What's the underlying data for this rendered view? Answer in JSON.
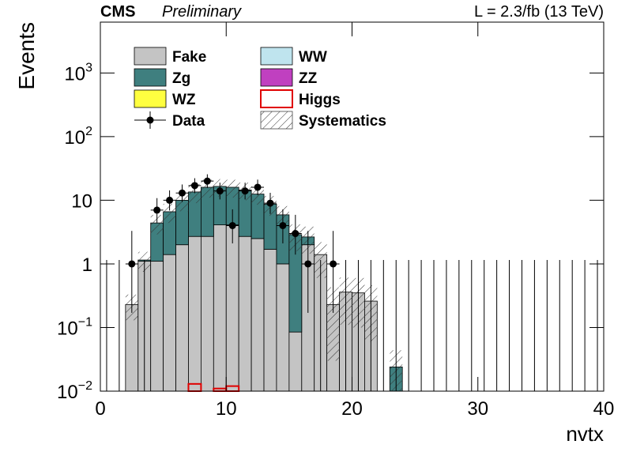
{
  "chart_data": {
    "type": "histogram",
    "title": "CMS",
    "subtitle": "Preliminary",
    "annotation": "L = 2.3/fb (13 TeV)",
    "x_label": "nvtx",
    "y_label": "Events",
    "log_y": true,
    "bins": [
      0,
      1,
      2,
      3,
      4,
      5,
      6,
      7,
      8,
      9,
      10,
      11,
      12,
      13,
      14,
      15,
      16,
      17,
      18,
      19,
      20,
      21,
      22,
      23,
      24,
      25,
      26,
      27,
      28,
      29,
      30,
      31,
      32,
      33,
      34,
      35,
      36,
      37,
      38,
      39,
      40
    ],
    "xlim": [
      0,
      40
    ],
    "xticks": [
      0,
      10,
      20,
      30,
      40
    ],
    "ylim": [
      0.01,
      6300
    ],
    "yticks": [
      {
        "value": 0.01,
        "label": "10",
        "sup": "−2"
      },
      {
        "value": 0.1,
        "label": "10",
        "sup": "−1"
      },
      1,
      10,
      {
        "value": 100,
        "label": "10",
        "sup": "2"
      },
      {
        "value": 1000,
        "label": "10",
        "sup": "3"
      }
    ],
    "series": [
      {
        "name": "Fake",
        "color": "#c4c4c4",
        "values": [
          0,
          0,
          0.23,
          1.1,
          1.1,
          1.4,
          2.0,
          2.7,
          2.7,
          4.1,
          4.1,
          2.7,
          2.5,
          1.7,
          1.0,
          0.085,
          2.0,
          1.4,
          0.23,
          0.36,
          0.35,
          0.26,
          0,
          0,
          0,
          0,
          0,
          0,
          0,
          0,
          0,
          0,
          0,
          0,
          0,
          0,
          0,
          0,
          0,
          0
        ]
      },
      {
        "name": "Zg",
        "color": "#3f7f7f",
        "values": [
          0,
          0,
          0,
          0.05,
          3.3,
          5.2,
          8.0,
          10.8,
          13.3,
          12.4,
          11.9,
          11.8,
          10.0,
          7.0,
          4.9,
          2.8,
          0.65,
          0,
          0,
          0,
          0,
          0,
          0,
          0.024,
          0,
          0,
          0,
          0,
          0,
          0,
          0,
          0,
          0,
          0,
          0,
          0,
          0,
          0,
          0,
          0
        ]
      },
      {
        "name": "WZ",
        "color": "#ffff40",
        "values": [
          0,
          0,
          0,
          0,
          0,
          0,
          0,
          0,
          0,
          0,
          0,
          0,
          0,
          0,
          0,
          0,
          0,
          0,
          0,
          0,
          0,
          0,
          0,
          0,
          0,
          0,
          0,
          0,
          0,
          0,
          0,
          0,
          0,
          0,
          0,
          0,
          0,
          0,
          0,
          0
        ]
      },
      {
        "name": "WW",
        "color": "#bfe4ee",
        "values": [
          0,
          0,
          0,
          0,
          0,
          0,
          0,
          0,
          0,
          0,
          0,
          0,
          0,
          0,
          0,
          0,
          0,
          0,
          0,
          0,
          0,
          0,
          0,
          0,
          0,
          0,
          0,
          0,
          0,
          0,
          0,
          0,
          0,
          0,
          0,
          0,
          0,
          0,
          0,
          0
        ]
      },
      {
        "name": "ZZ",
        "color": "#c040c0",
        "values": [
          0,
          0,
          0,
          0,
          0,
          0,
          0,
          0,
          0,
          0,
          0,
          0,
          0,
          0,
          0,
          0,
          0,
          0,
          0,
          0,
          0,
          0,
          0,
          0,
          0,
          0,
          0,
          0,
          0,
          0,
          0,
          0,
          0,
          0,
          0,
          0,
          0,
          0,
          0,
          0
        ]
      },
      {
        "name": "Higgs",
        "color": "#e00000",
        "stacked": false,
        "values": [
          0,
          0,
          0,
          0,
          0,
          0,
          0,
          0.013,
          0,
          0.011,
          0.012,
          0,
          0,
          0,
          0,
          0,
          0,
          0,
          0,
          0,
          0,
          0,
          0,
          0,
          0,
          0,
          0,
          0,
          0,
          0,
          0,
          0,
          0,
          0,
          0,
          0,
          0,
          0,
          0,
          0
        ]
      }
    ],
    "data": {
      "name": "Data",
      "color": "#000000",
      "values": [
        0,
        0,
        1,
        0,
        7,
        10,
        13,
        17,
        20,
        14,
        4,
        14,
        16,
        9,
        4,
        3,
        1,
        0,
        1,
        0,
        0,
        0,
        0,
        0,
        0,
        0,
        0,
        0,
        0,
        0,
        0,
        0,
        0,
        0,
        0,
        0,
        0,
        0,
        0,
        0
      ],
      "yerr_low": [
        0,
        0,
        0.83,
        0,
        2.6,
        3.1,
        3.6,
        4.1,
        4.4,
        3.7,
        1.9,
        3.7,
        4.0,
        2.9,
        1.9,
        1.6,
        0.83,
        0,
        0.83,
        0,
        0,
        0,
        0,
        0,
        0,
        0,
        0,
        0,
        0,
        0,
        0,
        0,
        0,
        0,
        0,
        0,
        0,
        0,
        0,
        0
      ],
      "yerr_high": [
        1.15,
        1.15,
        2.3,
        1.15,
        3.8,
        4.3,
        4.7,
        5.2,
        5.6,
        4.9,
        3.2,
        4.9,
        5.1,
        4.1,
        3.2,
        2.9,
        2.3,
        1.15,
        2.3,
        1.15,
        1.15,
        1.15,
        1.15,
        1.15,
        1.15,
        1.15,
        1.15,
        1.15,
        1.15,
        1.15,
        1.15,
        1.15,
        1.15,
        1.15,
        1.15,
        1.15,
        1.15,
        1.15,
        1.15,
        1.15
      ]
    },
    "systematics": {
      "name": "Systematics",
      "color": "#444444",
      "values": [
        0,
        0,
        0.1,
        0.4,
        1.5,
        2.2,
        3.3,
        4.5,
        5,
        5,
        5,
        4.5,
        4,
        3,
        2.2,
        1.3,
        1.2,
        0.8,
        0.2,
        0.25,
        0.25,
        0.2,
        0,
        0.02,
        0,
        0,
        0,
        0,
        0,
        0,
        0,
        0,
        0,
        0,
        0,
        0,
        0,
        0,
        0,
        0
      ]
    }
  }
}
